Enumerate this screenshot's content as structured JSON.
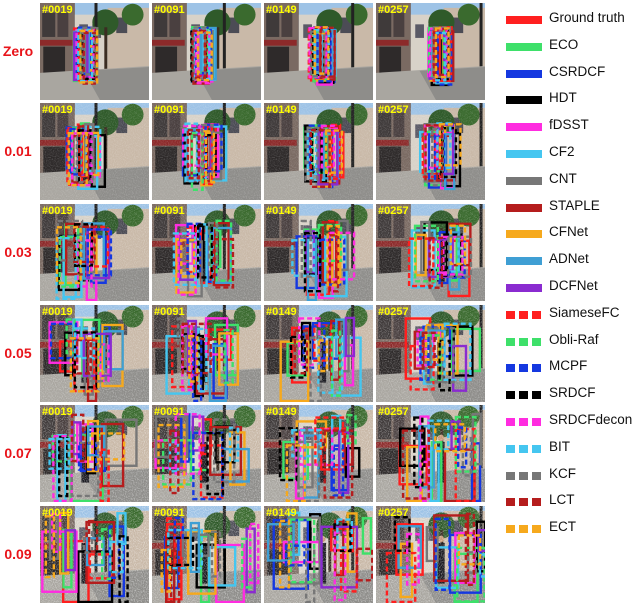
{
  "rows": [
    {
      "label": "Zero",
      "noise": 0.0
    },
    {
      "label": "0.01",
      "noise": 0.01
    },
    {
      "label": "0.03",
      "noise": 0.03
    },
    {
      "label": "0.05",
      "noise": 0.05
    },
    {
      "label": "0.07",
      "noise": 0.07
    },
    {
      "label": "0.09",
      "noise": 0.09
    }
  ],
  "frames": [
    "#0019",
    "#0091",
    "#0149",
    "#0257"
  ],
  "legend": [
    {
      "name": "Ground truth",
      "color": "#ff1f1f",
      "dashed": false
    },
    {
      "name": "ECO",
      "color": "#3ee06a",
      "dashed": false
    },
    {
      "name": "CSRDCF",
      "color": "#1538e0",
      "dashed": false
    },
    {
      "name": "HDT",
      "color": "#000000",
      "dashed": false
    },
    {
      "name": "fDSST",
      "color": "#ff2ce0",
      "dashed": false
    },
    {
      "name": "CF2",
      "color": "#45c6f0",
      "dashed": false
    },
    {
      "name": "CNT",
      "color": "#777777",
      "dashed": false
    },
    {
      "name": "STAPLE",
      "color": "#b51d1d",
      "dashed": false
    },
    {
      "name": "CFNet",
      "color": "#f6a91d",
      "dashed": false
    },
    {
      "name": "ADNet",
      "color": "#3f9fd4",
      "dashed": false
    },
    {
      "name": "DCFNet",
      "color": "#8a2bd0",
      "dashed": false
    },
    {
      "name": "SiameseFC",
      "color": "#ff1f1f",
      "dashed": true
    },
    {
      "name": "Obli-Raf",
      "color": "#3ee06a",
      "dashed": true
    },
    {
      "name": "MCPF",
      "color": "#1538e0",
      "dashed": true
    },
    {
      "name": "SRDCF",
      "color": "#000000",
      "dashed": true
    },
    {
      "name": "SRDCFdecon",
      "color": "#ff2ce0",
      "dashed": true
    },
    {
      "name": "BIT",
      "color": "#45c6f0",
      "dashed": true
    },
    {
      "name": "KCF",
      "color": "#777777",
      "dashed": true
    },
    {
      "name": "LCT",
      "color": "#b51d1d",
      "dashed": true
    },
    {
      "name": "ECT",
      "color": "#f6a91d",
      "dashed": true
    }
  ]
}
